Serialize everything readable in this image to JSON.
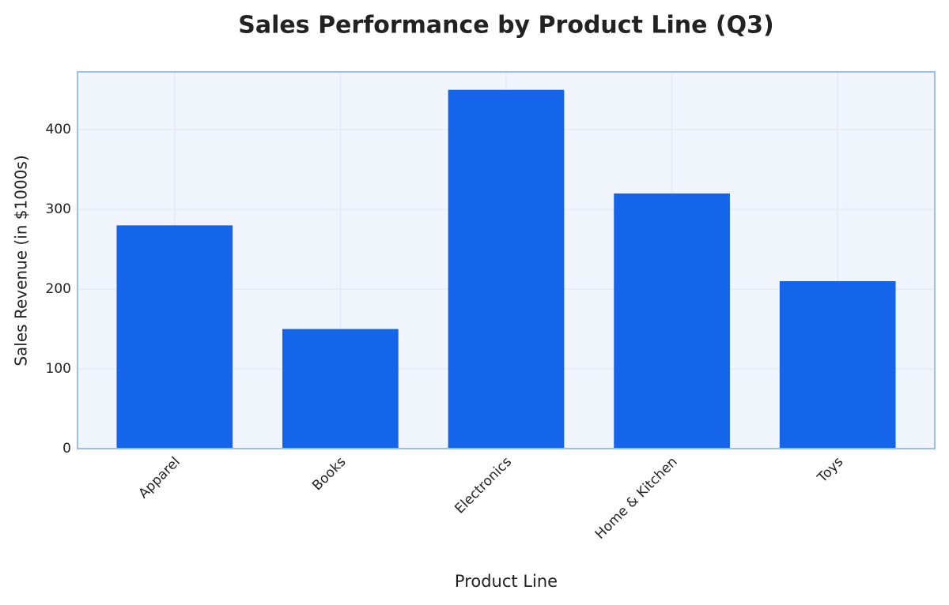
{
  "chart_data": {
    "type": "bar",
    "title": "Sales Performance by Product Line (Q3)",
    "x_label": "Product Line",
    "y_label": "Sales Revenue (in $1000s)",
    "categories": [
      "Apparel",
      "Books",
      "Electronics",
      "Home & Kitchen",
      "Toys"
    ],
    "values": [
      280,
      150,
      450,
      320,
      210
    ],
    "color": "#1565ea",
    "ylim": [
      0,
      472.5
    ],
    "yticks": [
      0,
      100,
      200,
      300,
      400
    ],
    "grid": true
  }
}
